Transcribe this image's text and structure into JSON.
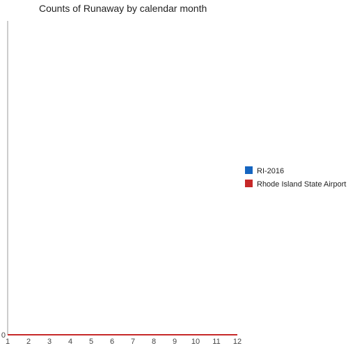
{
  "chart_data": {
    "type": "line",
    "title": "Counts of Runaway by calendar month",
    "xlabel": "",
    "ylabel": "",
    "x": [
      1,
      2,
      3,
      4,
      5,
      6,
      7,
      8,
      9,
      10,
      11,
      12
    ],
    "xlim": [
      1,
      12
    ],
    "ylim": [
      0,
      1
    ],
    "y_ticks": [
      "0"
    ],
    "grid": false,
    "legend_position": "right",
    "series": [
      {
        "name": "RI-2016",
        "color": "#1565c0",
        "values": [
          0,
          0,
          0,
          0,
          0,
          0,
          0,
          0,
          0,
          0,
          0,
          0
        ]
      },
      {
        "name": "Rhode Island State Airport",
        "color": "#c62828",
        "values": [
          0,
          0,
          0,
          0,
          0,
          0,
          0,
          0,
          0,
          0,
          0,
          0
        ]
      }
    ]
  }
}
